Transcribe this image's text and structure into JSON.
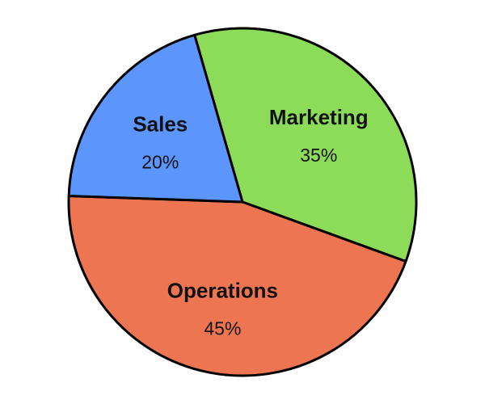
{
  "chart_data": {
    "type": "pie",
    "title": "",
    "start_angle_deg": -16,
    "direction": "clockwise",
    "slices": [
      {
        "label": "Marketing",
        "value": 35,
        "value_label": "35%",
        "color": "#8cdc5a"
      },
      {
        "label": "Operations",
        "value": 45,
        "value_label": "45%",
        "color": "#ee7552"
      },
      {
        "label": "Sales",
        "value": 20,
        "value_label": "20%",
        "color": "#5c95fc"
      }
    ],
    "stroke_color": "#000000",
    "legend": "none"
  }
}
